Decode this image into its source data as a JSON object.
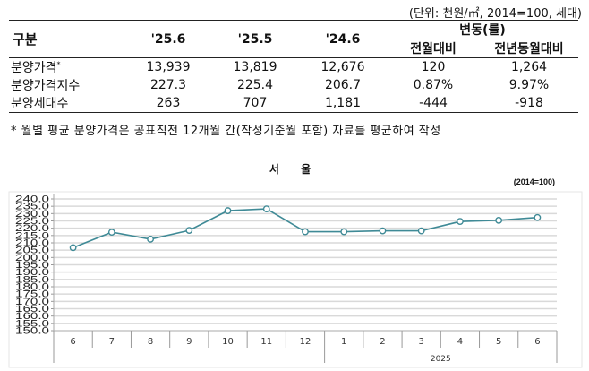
{
  "table": {
    "unit_note": "(단위: 천원/㎡, 2014=100, 세대)",
    "header": {
      "category": "구분",
      "cols": [
        "'25.6",
        "'25.5",
        "'24.6"
      ],
      "change_group": "변동(률)",
      "change_cols": [
        "전월대비",
        "전년동월대비"
      ]
    },
    "rows": [
      {
        "label": "분양가격",
        "mark": "*",
        "values": [
          "13,939",
          "13,819",
          "12,676",
          "120",
          "1,264"
        ]
      },
      {
        "label": "분양가격지수",
        "mark": "",
        "values": [
          "227.3",
          "225.4",
          "206.7",
          "0.87%",
          "9.97%"
        ]
      },
      {
        "label": "분양세대수",
        "mark": "",
        "values": [
          "263",
          "707",
          "1,181",
          "-444",
          "-918"
        ]
      }
    ],
    "footnote": "* 월별 평균 분양가격은 공표직전 12개월 간(작성기준월 포함) 자료를 평균하여 작성"
  },
  "chart_data": {
    "type": "line",
    "title": "서 울",
    "subtitle": "(2014=100)",
    "xlabel": "",
    "ylabel": "",
    "categories": [
      "6",
      "7",
      "8",
      "9",
      "10",
      "11",
      "12",
      "1",
      "2",
      "3",
      "4",
      "5",
      "6"
    ],
    "year_group": {
      "label": "2025",
      "start_index": 7,
      "end_index": 12
    },
    "series": [
      {
        "name": "분양가격지수",
        "color": "#3f8a96",
        "values": [
          206.7,
          217.3,
          212.5,
          218.5,
          232.0,
          233.2,
          217.6,
          217.6,
          218.2,
          218.2,
          224.6,
          225.4,
          227.3
        ]
      }
    ],
    "ylim": [
      150.0,
      240.0
    ],
    "yticks": [
      "150.0",
      "155.0",
      "160.0",
      "165.0",
      "170.0",
      "175.0",
      "180.0",
      "185.0",
      "190.0",
      "195.0",
      "200.0",
      "205.0",
      "210.0",
      "215.0",
      "220.0",
      "225.0",
      "230.0",
      "235.0",
      "240.0"
    ],
    "grid": true,
    "legend": "none"
  }
}
